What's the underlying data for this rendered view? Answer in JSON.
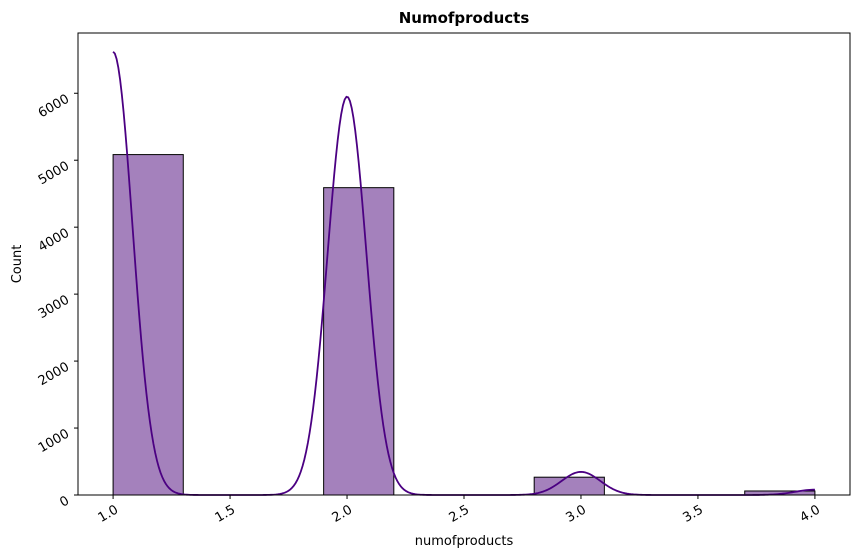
{
  "chart_data": {
    "type": "bar",
    "subtype": "histogram-with-kde",
    "title": "Numofproducts",
    "xlabel": "numofproducts",
    "ylabel": "Count",
    "xlim": [
      0.85,
      4.15
    ],
    "ylim": [
      0,
      6900
    ],
    "x_ticks": [
      "1.0",
      "1.5",
      "2.0",
      "2.5",
      "3.0",
      "3.5",
      "4.0"
    ],
    "y_ticks": [
      "0",
      "1000",
      "2000",
      "3000",
      "4000",
      "5000",
      "6000"
    ],
    "bins": [
      {
        "x0": 1.0,
        "x1": 1.3,
        "count": 5084
      },
      {
        "x0": 1.9,
        "x1": 2.2,
        "count": 4590
      },
      {
        "x0": 2.8,
        "x1": 3.1,
        "count": 266
      },
      {
        "x0": 3.7,
        "x1": 4.0,
        "count": 60
      }
    ],
    "kde": [
      {
        "mu": 1.0,
        "sigma": 0.083,
        "amp": 6620
      },
      {
        "mu": 2.0,
        "sigma": 0.083,
        "amp": 5950
      },
      {
        "mu": 3.0,
        "sigma": 0.083,
        "amp": 345
      },
      {
        "mu": 4.0,
        "sigma": 0.083,
        "amp": 80
      }
    ],
    "grid": false,
    "tick_rotation": 30,
    "colors": {
      "bar_fill": "#a481bc",
      "bar_edge": "#000000",
      "kde_line": "#4b0082"
    }
  }
}
